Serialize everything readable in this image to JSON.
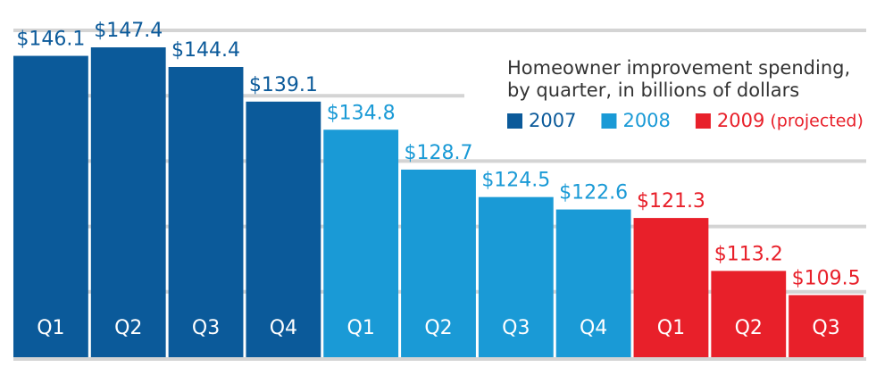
{
  "chart_data": {
    "type": "bar",
    "title": [
      "Homeowner improvement spending,",
      "by quarter, in billions of dollars"
    ],
    "ylim": [
      100,
      150
    ],
    "yticks": [
      110,
      120,
      130,
      140,
      150
    ],
    "grid": true,
    "series": [
      {
        "name": "2007",
        "color": "#0b5a9a",
        "categories": [
          "Q1",
          "Q2",
          "Q3",
          "Q4"
        ],
        "values": [
          146.1,
          147.4,
          144.4,
          139.1
        ],
        "value_labels": [
          "$146.1",
          "$147.4",
          "$144.4",
          "$139.1"
        ]
      },
      {
        "name": "2008",
        "color": "#1a9ad6",
        "categories": [
          "Q1",
          "Q2",
          "Q3",
          "Q4"
        ],
        "values": [
          134.8,
          128.7,
          124.5,
          122.6
        ],
        "value_labels": [
          "$134.8",
          "$128.7",
          "$124.5",
          "$122.6"
        ]
      },
      {
        "name": "2009",
        "qualifier": "(projected)",
        "color": "#e8202a",
        "categories": [
          "Q1",
          "Q2",
          "Q3"
        ],
        "values": [
          121.3,
          113.2,
          109.5
        ],
        "value_labels": [
          "$121.3",
          "$113.2",
          "$109.5"
        ]
      }
    ]
  }
}
